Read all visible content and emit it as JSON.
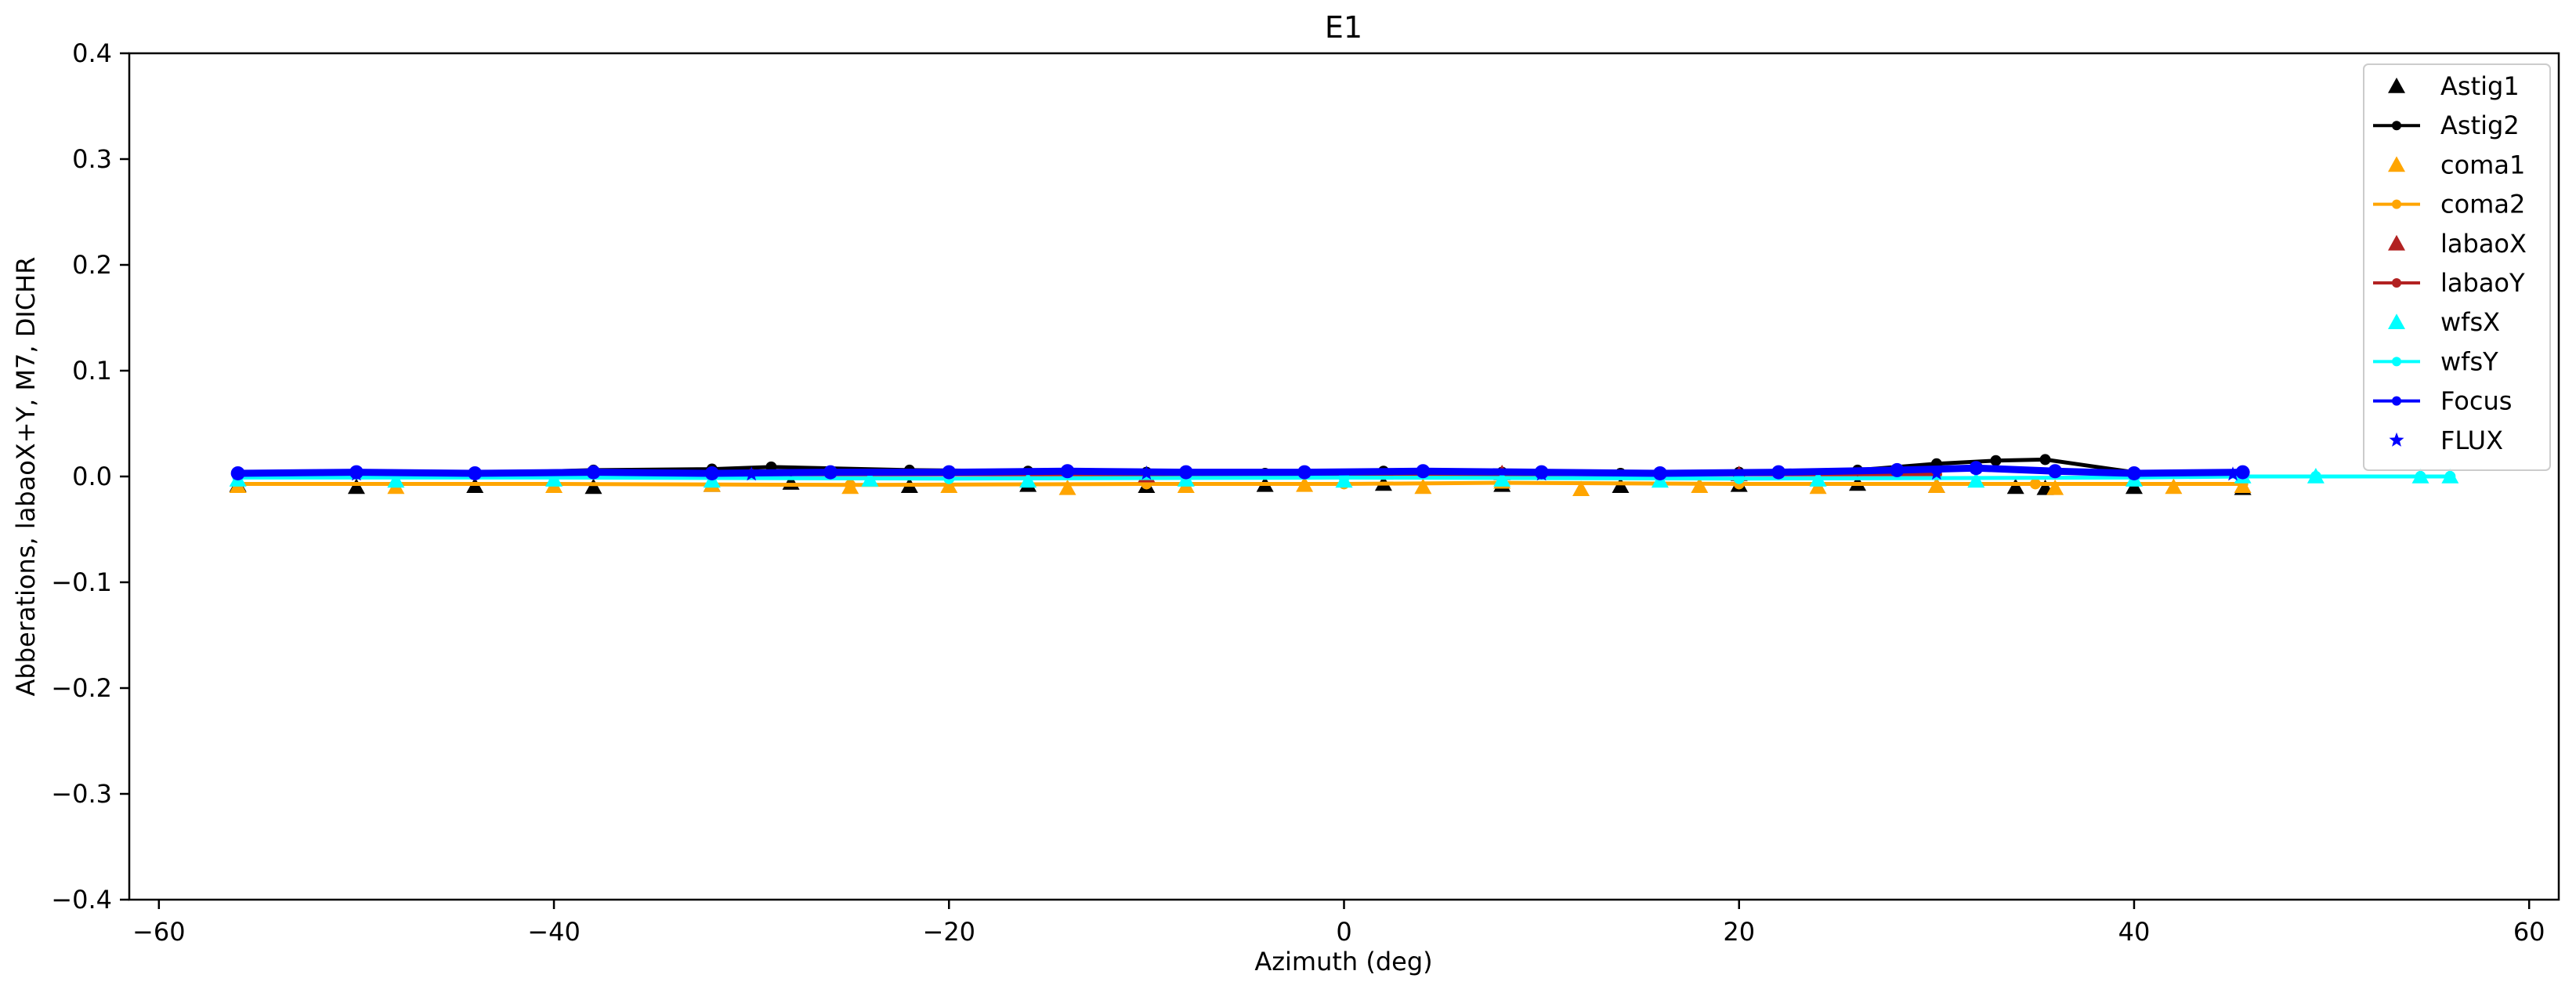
{
  "chart_data": {
    "type": "scatter",
    "title": "E1",
    "xlabel": "Azimuth (deg)",
    "ylabel": "Abberations, labaoX+Y, M7, DICHR",
    "xlim": [
      -61.5,
      61.5
    ],
    "ylim": [
      -0.4,
      0.4
    ],
    "x_ticks": [
      -60,
      -40,
      -20,
      0,
      20,
      40,
      60
    ],
    "y_ticks": [
      -0.4,
      -0.3,
      -0.2,
      -0.1,
      0.0,
      0.1,
      0.2,
      0.3,
      0.4
    ],
    "x_tick_labels": [
      "−60",
      "−40",
      "−20",
      "0",
      "20",
      "40",
      "60"
    ],
    "y_tick_labels": [
      "−0.4",
      "−0.3",
      "−0.2",
      "−0.1",
      "0.0",
      "0.1",
      "0.2",
      "0.3",
      "0.4"
    ],
    "grid": false,
    "legend_position": "top-right",
    "series": [
      {
        "name": "Astig1",
        "color": "#000000",
        "marker": "triangle",
        "line": false,
        "x": [
          -56,
          -50,
          -44,
          -38,
          -32,
          -28,
          -22,
          -16,
          -10,
          -4,
          2,
          8,
          14,
          20,
          26,
          30,
          34,
          35.5,
          40,
          45.5
        ],
        "y": [
          -0.008,
          -0.01,
          -0.009,
          -0.01,
          -0.008,
          -0.006,
          -0.009,
          -0.008,
          -0.009,
          -0.008,
          -0.007,
          -0.008,
          -0.009,
          -0.008,
          -0.007,
          -0.009,
          -0.01,
          -0.011,
          -0.01,
          -0.011
        ]
      },
      {
        "name": "Astig2",
        "color": "#000000",
        "marker": "dot",
        "line": true,
        "x": [
          -56,
          -50,
          -44,
          -38,
          -32,
          -29,
          -22,
          -16,
          -10,
          -4,
          2,
          8,
          14,
          20,
          26,
          30,
          33,
          35.5,
          40,
          45.5
        ],
        "y": [
          0.004,
          0.005,
          0.003,
          0.006,
          0.007,
          0.009,
          0.006,
          0.005,
          0.004,
          0.003,
          0.005,
          0.004,
          0.003,
          0.004,
          0.006,
          0.012,
          0.015,
          0.016,
          0.004,
          0.003
        ]
      },
      {
        "name": "coma1",
        "color": "#ffa500",
        "marker": "triangle",
        "line": false,
        "x": [
          -56,
          -48,
          -40,
          -32,
          -25,
          -20,
          -14,
          -8,
          -2,
          4,
          8,
          12,
          18,
          24,
          30,
          36,
          42,
          45.5
        ],
        "y": [
          -0.009,
          -0.01,
          -0.009,
          -0.008,
          -0.01,
          -0.009,
          -0.011,
          -0.009,
          -0.008,
          -0.01,
          -0.005,
          -0.012,
          -0.009,
          -0.01,
          -0.009,
          -0.011,
          -0.01,
          -0.009
        ]
      },
      {
        "name": "coma2",
        "color": "#ffa500",
        "marker": "dot",
        "line": true,
        "x": [
          -56,
          -40,
          -25,
          -10,
          0,
          8,
          20,
          35,
          45.5
        ],
        "y": [
          -0.007,
          -0.007,
          -0.008,
          -0.007,
          -0.007,
          -0.006,
          -0.007,
          -0.007,
          -0.007
        ]
      },
      {
        "name": "labaoX",
        "color": "#b22222",
        "marker": "triangle",
        "line": false,
        "x": [
          -10,
          8,
          20
        ],
        "y": [
          0.001,
          0.003,
          0.002
        ]
      },
      {
        "name": "labaoY",
        "color": "#b22222",
        "marker": "dot",
        "line": true,
        "x": [
          -30,
          0,
          30
        ],
        "y": [
          0.002,
          0.002,
          0.002
        ]
      },
      {
        "name": "wfsX",
        "color": "#00ffff",
        "marker": "triangle",
        "line": false,
        "x": [
          -56,
          -48,
          -40,
          -32,
          -24,
          -16,
          -8,
          0,
          8,
          16,
          24,
          32,
          40,
          45.5,
          49.2,
          54.5,
          56
        ],
        "y": [
          -0.003,
          -0.004,
          -0.003,
          -0.004,
          -0.003,
          -0.004,
          -0.003,
          -0.004,
          -0.003,
          -0.004,
          -0.003,
          -0.004,
          -0.003,
          0.0,
          0.0,
          0.0,
          0.0
        ]
      },
      {
        "name": "wfsY",
        "color": "#00ffff",
        "marker": "dot",
        "line": true,
        "x": [
          -56,
          -40,
          -20,
          0,
          20,
          40,
          45.5,
          49.2,
          54.5,
          56
        ],
        "y": [
          -0.001,
          -0.001,
          -0.002,
          -0.001,
          -0.002,
          -0.001,
          0.0,
          0.0,
          0.0,
          0.0
        ]
      },
      {
        "name": "Focus",
        "color": "#0000ff",
        "marker": "dot",
        "line": true,
        "x": [
          -56,
          -50,
          -44,
          -38,
          -32,
          -26,
          -20,
          -14,
          -8,
          -2,
          4,
          10,
          16,
          22,
          28,
          32,
          36,
          40,
          45.5
        ],
        "y": [
          0.003,
          0.004,
          0.003,
          0.004,
          0.003,
          0.004,
          0.004,
          0.005,
          0.004,
          0.004,
          0.005,
          0.004,
          0.003,
          0.004,
          0.006,
          0.008,
          0.005,
          0.003,
          0.004
        ]
      },
      {
        "name": "FLUX",
        "color": "#0000ff",
        "marker": "star",
        "line": false,
        "x": [
          -50,
          -30,
          -10,
          10,
          30,
          45
        ],
        "y": [
          0.002,
          0.002,
          0.003,
          0.002,
          0.003,
          0.002
        ]
      }
    ]
  }
}
